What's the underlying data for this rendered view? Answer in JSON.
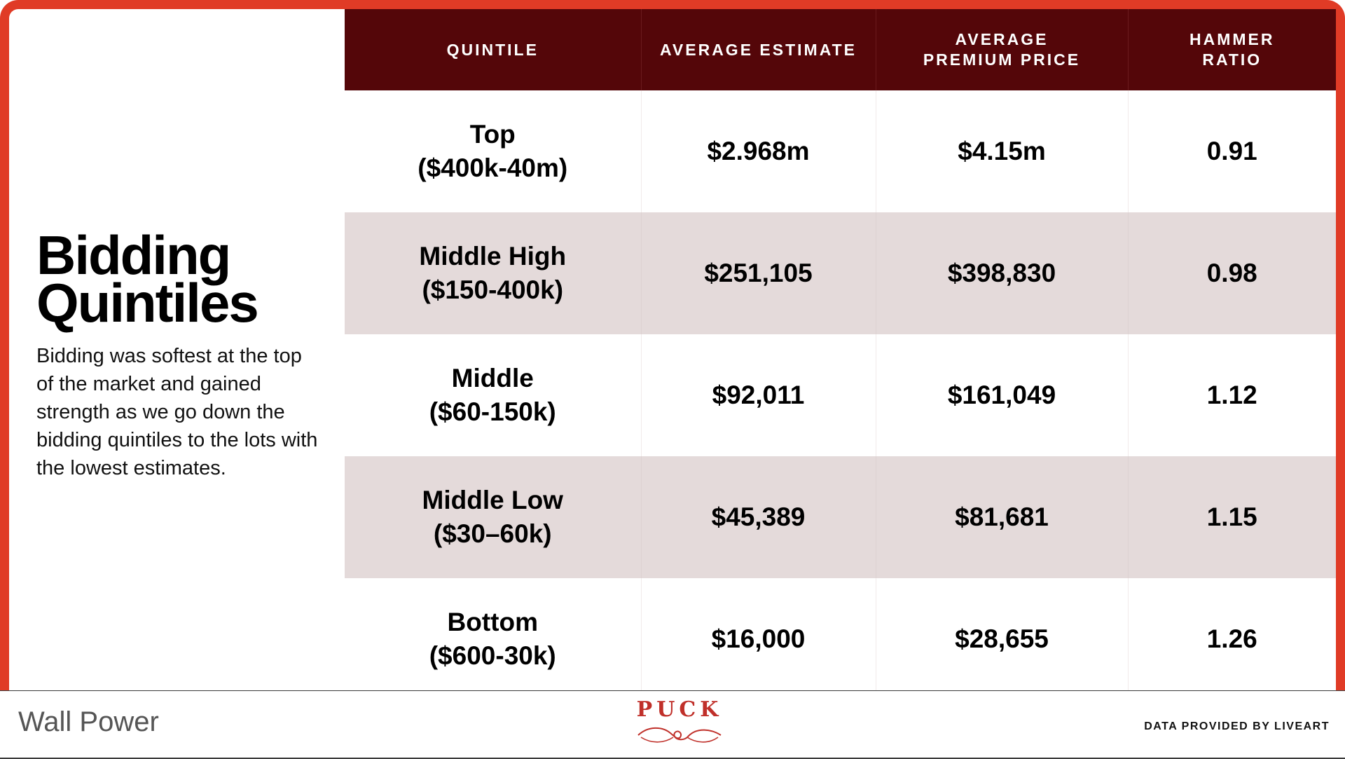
{
  "page": {
    "title_line1": "Bidding",
    "title_line2": "Quintiles",
    "description": "Bidding was softest at the top of the market and gained strength as we go down the bidding quintiles to the lots with the lowest estimates."
  },
  "table": {
    "headers": [
      "QUINTILE",
      "AVERAGE ESTIMATE",
      "AVERAGE PREMIUM PRICE",
      "HAMMER RATIO"
    ],
    "rows": [
      {
        "name": "Top",
        "range": "($400k-40m)",
        "avg_estimate": "$2.968m",
        "avg_premium": "$4.15m",
        "hammer_ratio": "0.91"
      },
      {
        "name": "Middle High",
        "range": "($150-400k)",
        "avg_estimate": "$251,105",
        "avg_premium": "$398,830",
        "hammer_ratio": "0.98"
      },
      {
        "name": "Middle",
        "range": "($60-150k)",
        "avg_estimate": "$92,011",
        "avg_premium": "$161,049",
        "hammer_ratio": "1.12"
      },
      {
        "name": "Middle Low",
        "range": "($30–60k)",
        "avg_estimate": "$45,389",
        "avg_premium": "$81,681",
        "hammer_ratio": "1.15"
      },
      {
        "name": "Bottom",
        "range": "($600-30k)",
        "avg_estimate": "$16,000",
        "avg_premium": "$28,655",
        "hammer_ratio": "1.26"
      }
    ]
  },
  "footer": {
    "left_label": "Wall Power",
    "logo_text": "PUCK",
    "credit": "DATA PROVIDED BY LIVEART"
  },
  "colors": {
    "frame": "#e03b26",
    "header_bg": "#540609",
    "shaded_row": "#e4dada",
    "logo": "#c0302a"
  }
}
